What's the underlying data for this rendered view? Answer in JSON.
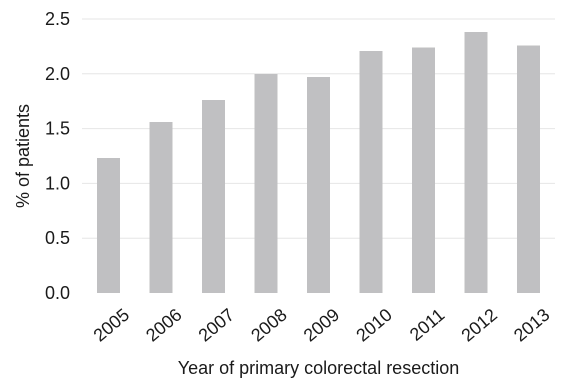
{
  "chart_data": {
    "type": "bar",
    "title": "",
    "xlabel": "Year of primary colorectal resection",
    "ylabel": "% of patients",
    "categories": [
      "2005",
      "2006",
      "2007",
      "2008",
      "2009",
      "2010",
      "2011",
      "2012",
      "2013"
    ],
    "values": [
      1.23,
      1.56,
      1.76,
      2.0,
      1.97,
      2.21,
      2.24,
      2.38,
      2.26
    ],
    "ylim": [
      0,
      2.5
    ],
    "yticks": [
      "0.0",
      "0.5",
      "1.0",
      "1.5",
      "2.0",
      "2.5"
    ],
    "grid": true,
    "legend": "none",
    "colors": {
      "bar": "#c0c0c2",
      "grid": "#e6e6e6",
      "text": "#1a1a1a"
    }
  }
}
